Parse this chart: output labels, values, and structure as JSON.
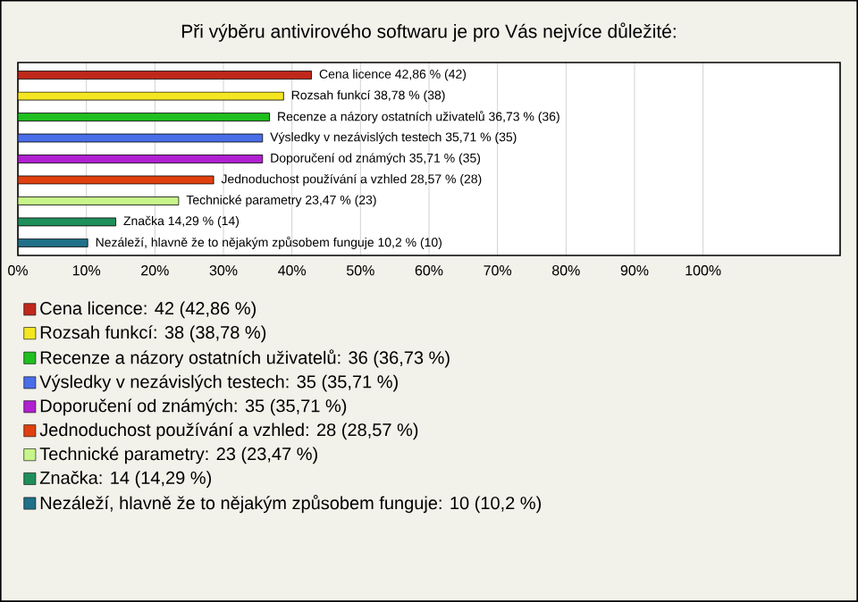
{
  "chart_data": {
    "type": "bar",
    "orientation": "horizontal",
    "title": "Při výběru antivirového softwaru je pro Vás nejvíce důležité:",
    "categories": [
      null,
      null,
      null,
      null,
      null,
      null,
      null,
      null,
      null
    ],
    "series": [
      {
        "name": "Cena licence: 42 (42,86 %)",
        "color": "#c0281b",
        "values": [
          42.86,
          null,
          null,
          null,
          null,
          null,
          null,
          null,
          null
        ],
        "value_labels": [
          "Cena licence 42,86 % (42)",
          null,
          null,
          null,
          null,
          null,
          null,
          null,
          null
        ]
      },
      {
        "name": "Rozsah funkcí: 38 (38,78 %)",
        "color": "#f5e623",
        "values": [
          null,
          38.78,
          null,
          null,
          null,
          null,
          null,
          null,
          null
        ],
        "value_labels": [
          null,
          "Rozsah funkcí 38,78 % (38)",
          null,
          null,
          null,
          null,
          null,
          null,
          null
        ]
      },
      {
        "name": "Recenze a názory ostatních uživatelů: 36 (36,73 %)",
        "color": "#1fbf1f",
        "values": [
          null,
          null,
          36.73,
          null,
          null,
          null,
          null,
          null,
          null
        ],
        "value_labels": [
          null,
          null,
          "Recenze a názory ostatních uživatelů 36,73 % (36)",
          null,
          null,
          null,
          null,
          null,
          null
        ]
      },
      {
        "name": "Výsledky v nezávislých testech: 35 (35,71 %)",
        "color": "#4a6ee8",
        "values": [
          null,
          null,
          null,
          35.71,
          null,
          null,
          null,
          null,
          null
        ],
        "value_labels": [
          null,
          null,
          null,
          "Výsledky v nezávislých testech 35,71 % (35)",
          null,
          null,
          null,
          null,
          null
        ]
      },
      {
        "name": "Doporučení od známých: 35 (35,71 %)",
        "color": "#b020d0",
        "values": [
          null,
          null,
          null,
          null,
          35.71,
          null,
          null,
          null,
          null
        ],
        "value_labels": [
          null,
          null,
          null,
          null,
          "Doporučení od známých 35,71 % (35)",
          null,
          null,
          null,
          null
        ]
      },
      {
        "name": "Jednoduchost používání a vzhled: 28 (28,57 %)",
        "color": "#e04010",
        "values": [
          null,
          null,
          null,
          null,
          null,
          28.57,
          null,
          null,
          null
        ],
        "value_labels": [
          null,
          null,
          null,
          null,
          null,
          "Jednoduchost používání a vzhled 28,57 % (28)",
          null,
          null,
          null
        ]
      },
      {
        "name": "Technické parametry: 23 (23,47 %)",
        "color": "#c8f58a",
        "values": [
          null,
          null,
          null,
          null,
          null,
          null,
          23.47,
          null,
          null
        ],
        "value_labels": [
          null,
          null,
          null,
          null,
          null,
          null,
          "Technické parametry 23,47 % (23)",
          null,
          null
        ]
      },
      {
        "name": "Značka: 14 (14,29 %)",
        "color": "#1f8f5a",
        "values": [
          null,
          null,
          null,
          null,
          null,
          null,
          null,
          14.29,
          null
        ],
        "value_labels": [
          null,
          null,
          null,
          null,
          null,
          null,
          null,
          "Značka 14,29 % (14)",
          null
        ]
      },
      {
        "name": "Nezáleží, hlavně že to nějakým způsobem funguje: 10 (10,2 %)",
        "color": "#1f7088",
        "values": [
          null,
          null,
          null,
          null,
          null,
          null,
          null,
          null,
          10.2
        ],
        "value_labels": [
          null,
          null,
          null,
          null,
          null,
          null,
          null,
          null,
          "Nezáleží, hlavně že to nějakým způsobem funguje 10,2 % (10)"
        ]
      }
    ],
    "xlim": [
      0,
      120
    ],
    "xticks": [
      {
        "value": 0,
        "label": "0%"
      },
      {
        "value": 10,
        "label": "10%"
      },
      {
        "value": 20,
        "label": "20%"
      },
      {
        "value": 30,
        "label": "30%"
      },
      {
        "value": 40,
        "label": "40%"
      },
      {
        "value": 50,
        "label": "50%"
      },
      {
        "value": 60,
        "label": "60%"
      },
      {
        "value": 70,
        "label": "70%"
      },
      {
        "value": 80,
        "label": "80%"
      },
      {
        "value": 90,
        "label": "90%"
      },
      {
        "value": 100,
        "label": "100%"
      }
    ],
    "grid": "x",
    "legend": "bottom"
  }
}
